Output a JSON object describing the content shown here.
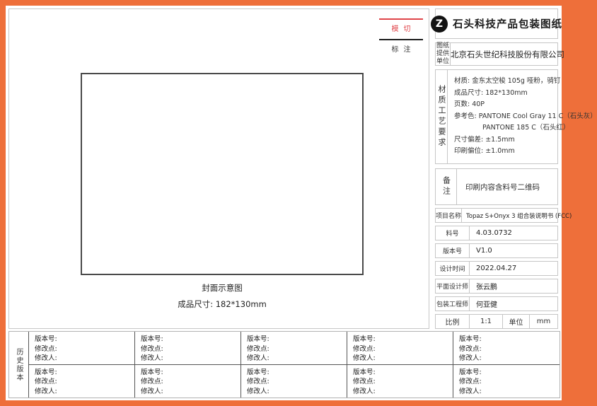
{
  "legend": {
    "die_cut": "模切",
    "annotation": "标注"
  },
  "drawing": {
    "caption_title": "封面示意图",
    "caption_size": "成品尺寸: 182*130mm"
  },
  "title_block": {
    "logo_glyph": "Z",
    "title": "石头科技产品包装图纸",
    "provider_label": "图纸提供单位",
    "provider_value": "北京石头世纪科技股份有限公司",
    "material_label": "材质工艺要求",
    "material_lines": [
      "材质: 金东太空梭 105g 哑粉，骑钉",
      "成品尺寸: 182*130mm",
      "页数: 40P",
      "参考色: PANTONE Cool Gray 11 C（石头灰）",
      "PANTONE 185 C（石头红）",
      "尺寸偏差: ±1.5mm",
      "印刷偏位: ±1.0mm"
    ],
    "remark_label": "备注",
    "remark_value": "印刷内容含料号二维码",
    "info_rows": [
      {
        "label": "项目名称",
        "value": "Topaz S+Onyx 3 组合装说明书 (FCC)"
      },
      {
        "label": "料号",
        "value": "4.03.0732"
      },
      {
        "label": "版本号",
        "value": "V1.0"
      },
      {
        "label": "设计时间",
        "value": "2022.04.27"
      },
      {
        "label": "平面设计师",
        "value": "张云鹏"
      },
      {
        "label": "包装工程师",
        "value": "何亚健"
      }
    ],
    "scale_label": "比例",
    "scale_value": "1:1",
    "unit_label": "单位",
    "unit_value": "mm"
  },
  "history": {
    "label": "历史版本",
    "fields": {
      "version": "版本号:",
      "change": "修改点:",
      "author": "修改人:"
    }
  },
  "colors": {
    "frame_orange": "#EE6F3A",
    "die_cut_red": "#E04449",
    "annotation_black": "#1D1D1D"
  }
}
